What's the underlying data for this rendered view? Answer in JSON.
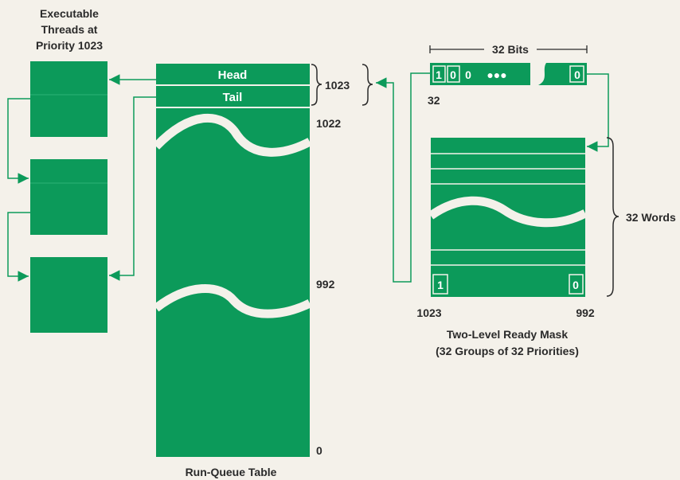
{
  "colors": {
    "green": "#0c9a5a",
    "background": "#f4f1ea",
    "text": "#2a2a2a"
  },
  "threads_label": {
    "line1": "Executable",
    "line2": "Threads at",
    "line3": "Priority 1023"
  },
  "run_queue": {
    "head_label": "Head",
    "tail_label": "Tail",
    "caption": "Run-Queue Table",
    "entry_label_1023": "1023",
    "entry_label_1022": "1022",
    "entry_label_992": "992",
    "entry_label_0": "0"
  },
  "bit_word": {
    "width_label": "32 Bits",
    "bits": [
      "1",
      "0",
      "0"
    ],
    "dots": "●●●",
    "last_bit": "0",
    "index_label": "32"
  },
  "ready_mask": {
    "words_label": "32 Words",
    "first_bit": "1",
    "last_bit": "0",
    "left_index": "1023",
    "right_index": "992",
    "caption_line1": "Two-Level Ready Mask",
    "caption_line2": "(32 Groups of 32 Priorities)"
  }
}
